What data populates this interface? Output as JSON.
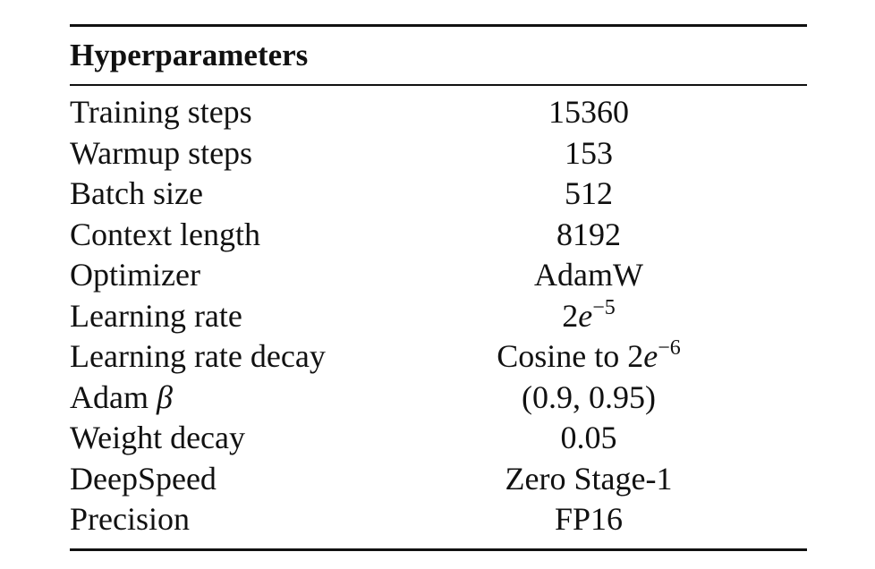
{
  "header": "Hyperparameters",
  "rows": [
    {
      "name": "Training steps",
      "value": "15360"
    },
    {
      "name": "Warmup steps",
      "value": "153"
    },
    {
      "name": "Batch size",
      "value": "512"
    },
    {
      "name": "Context length",
      "value": "8192"
    },
    {
      "name": "Optimizer",
      "value": "AdamW"
    },
    {
      "name": "Learning rate",
      "value": "2",
      "value_it": "e",
      "value_sup": "−5"
    },
    {
      "name": "Learning rate decay",
      "value": "Cosine to 2",
      "value_it": "e",
      "value_sup": "−6"
    },
    {
      "name": "Adam ",
      "name_it": "β",
      "value": "(0.9, 0.95)"
    },
    {
      "name": "Weight decay",
      "value": "0.05"
    },
    {
      "name": "DeepSpeed",
      "value": "Zero Stage-1"
    },
    {
      "name": "Precision",
      "value": "FP16"
    }
  ]
}
